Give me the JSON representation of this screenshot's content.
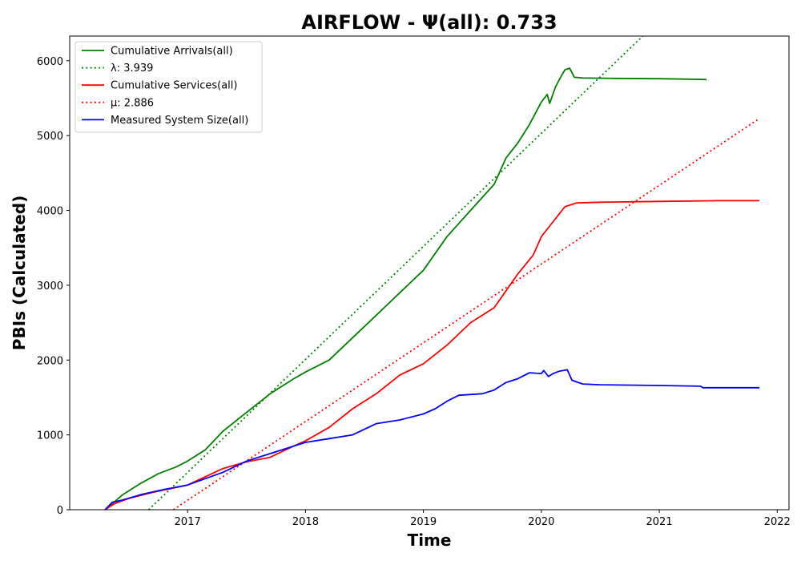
{
  "chart_data": {
    "type": "line",
    "title": "AIRFLOW -  Ψ(all): 0.733",
    "xlabel": "Time",
    "ylabel": "PBIs (Calculated)",
    "xlim": [
      2016.0,
      2022.1
    ],
    "ylim": [
      0,
      6330
    ],
    "xticks": [
      2017,
      2018,
      2019,
      2020,
      2021,
      2022
    ],
    "xtick_labels": [
      "2017",
      "2018",
      "2019",
      "2020",
      "2021",
      "2022"
    ],
    "yticks": [
      0,
      1000,
      2000,
      3000,
      4000,
      5000,
      6000
    ],
    "ytick_labels": [
      "0",
      "1000",
      "2000",
      "3000",
      "4000",
      "5000",
      "6000"
    ],
    "grid": false,
    "legend_position": "upper-left",
    "series": [
      {
        "name": "Cumulative Arrivals(all)",
        "color": "#008000",
        "style": "solid",
        "x": [
          2016.3,
          2016.36,
          2016.45,
          2016.6,
          2016.75,
          2016.9,
          2017.0,
          2017.15,
          2017.3,
          2017.5,
          2017.7,
          2017.9,
          2018.0,
          2018.2,
          2018.4,
          2018.6,
          2018.8,
          2019.0,
          2019.2,
          2019.4,
          2019.6,
          2019.7,
          2019.8,
          2019.9,
          2020.0,
          2020.05,
          2020.07,
          2020.12,
          2020.17,
          2020.2,
          2020.24,
          2020.28,
          2020.35,
          2020.6,
          2021.0,
          2021.4
        ],
        "y": [
          0,
          80,
          200,
          350,
          480,
          570,
          650,
          800,
          1050,
          1300,
          1550,
          1750,
          1840,
          2000,
          2300,
          2600,
          2900,
          3200,
          3650,
          4000,
          4350,
          4700,
          4900,
          5150,
          5450,
          5550,
          5430,
          5650,
          5800,
          5880,
          5900,
          5780,
          5770,
          5765,
          5760,
          5750
        ]
      },
      {
        "name": "λ: 3.939",
        "color": "#008000",
        "style": "dotted",
        "x": [
          2016.67,
          2020.86
        ],
        "y": [
          0,
          6330
        ]
      },
      {
        "name": "Cumulative Services(all)",
        "color": "#ff0000",
        "style": "solid",
        "x": [
          2016.3,
          2016.38,
          2016.5,
          2016.7,
          2017.0,
          2017.3,
          2017.5,
          2017.7,
          2017.9,
          2018.0,
          2018.2,
          2018.4,
          2018.6,
          2018.8,
          2019.0,
          2019.2,
          2019.4,
          2019.6,
          2019.8,
          2019.93,
          2020.0,
          2020.1,
          2020.2,
          2020.3,
          2020.5,
          2021.0,
          2021.5,
          2021.85
        ],
        "y": [
          0,
          80,
          150,
          230,
          330,
          550,
          640,
          700,
          850,
          920,
          1100,
          1350,
          1550,
          1800,
          1950,
          2200,
          2500,
          2700,
          3150,
          3400,
          3650,
          3850,
          4050,
          4100,
          4110,
          4120,
          4130,
          4130
        ]
      },
      {
        "name": "μ: 2.886",
        "color": "#ff0000",
        "style": "dotted",
        "x": [
          2016.88,
          2021.85
        ],
        "y": [
          0,
          5230
        ]
      },
      {
        "name": "Measured System Size(all)",
        "color": "#0000ff",
        "style": "solid",
        "x": [
          2016.3,
          2016.36,
          2016.45,
          2016.6,
          2016.8,
          2017.0,
          2017.3,
          2017.5,
          2017.7,
          2017.9,
          2018.0,
          2018.2,
          2018.4,
          2018.6,
          2018.8,
          2019.0,
          2019.1,
          2019.2,
          2019.3,
          2019.5,
          2019.6,
          2019.7,
          2019.8,
          2019.9,
          2020.0,
          2020.02,
          2020.06,
          2020.1,
          2020.15,
          2020.22,
          2020.26,
          2020.35,
          2020.5,
          2021.0,
          2021.35,
          2021.37,
          2021.85
        ],
        "y": [
          0,
          100,
          130,
          200,
          270,
          330,
          500,
          650,
          750,
          850,
          900,
          950,
          1000,
          1150,
          1200,
          1280,
          1350,
          1450,
          1530,
          1550,
          1600,
          1700,
          1750,
          1830,
          1820,
          1860,
          1780,
          1820,
          1850,
          1870,
          1730,
          1680,
          1670,
          1660,
          1650,
          1630,
          1630
        ]
      }
    ]
  }
}
